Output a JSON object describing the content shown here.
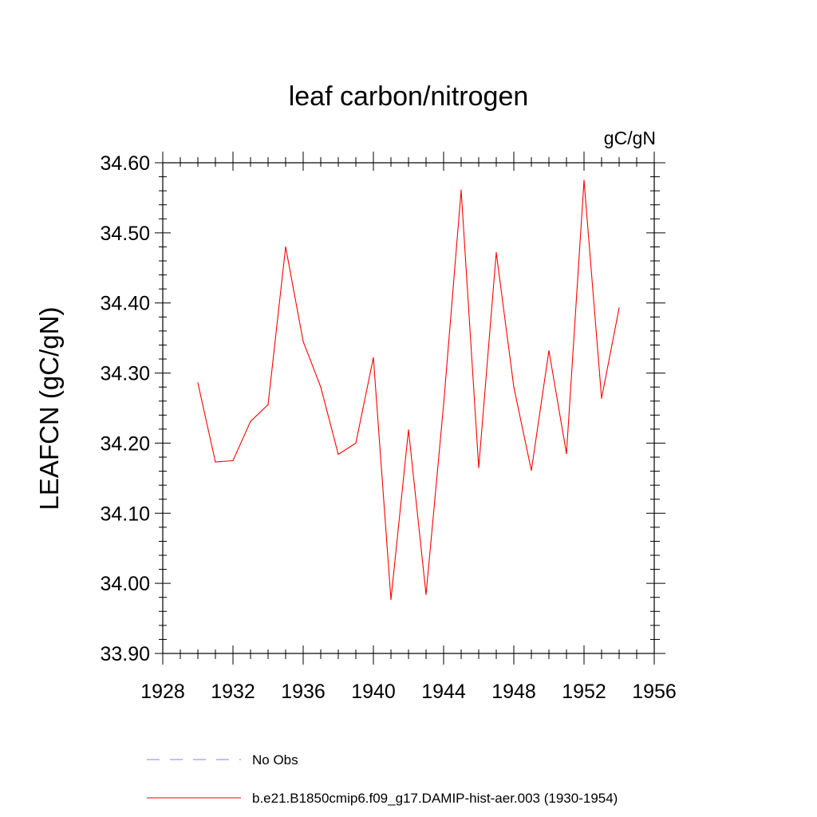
{
  "chart_data": {
    "type": "line",
    "title": "leaf carbon/nitrogen",
    "units": "gC/gN",
    "ylabel": "LEAFCN  (gC/gN)",
    "xlabel": "",
    "xlim": [
      1928,
      1956
    ],
    "ylim": [
      33.9,
      34.6
    ],
    "x_ticks": [
      1928,
      1932,
      1936,
      1940,
      1944,
      1948,
      1952,
      1956
    ],
    "x_tick_labels": [
      "1928",
      "1932",
      "1936",
      "1940",
      "1944",
      "1948",
      "1952",
      "1956"
    ],
    "y_ticks": [
      33.9,
      34.0,
      34.1,
      34.2,
      34.3,
      34.4,
      34.5,
      34.6
    ],
    "y_tick_labels": [
      "33.90",
      "34.00",
      "34.10",
      "34.20",
      "34.30",
      "34.40",
      "34.50",
      "34.60"
    ],
    "grid": false,
    "legend_position": "bottom",
    "series": [
      {
        "name": "b.e21.B1850cmip6.f09_g17.DAMIP-hist-aer.003 (1930-1954)",
        "color": "#ff0000",
        "style": "solid",
        "x": [
          1930,
          1931,
          1932,
          1933,
          1934,
          1935,
          1936,
          1937,
          1938,
          1939,
          1940,
          1941,
          1942,
          1943,
          1944,
          1945,
          1946,
          1947,
          1948,
          1949,
          1950,
          1951,
          1952,
          1953,
          1954
        ],
        "y": [
          34.286,
          34.173,
          34.175,
          34.231,
          34.255,
          34.48,
          34.345,
          34.28,
          34.184,
          34.2,
          34.322,
          33.977,
          34.219,
          33.984,
          34.255,
          34.561,
          34.165,
          34.472,
          34.28,
          34.161,
          34.332,
          34.185,
          34.575,
          34.264,
          34.393
        ]
      }
    ],
    "legend": [
      {
        "label": "No Obs",
        "color": "#8080ff",
        "style": "dashed"
      },
      {
        "label": "b.e21.B1850cmip6.f09_g17.DAMIP-hist-aer.003 (1930-1954)",
        "color": "#ff0000",
        "style": "solid"
      }
    ]
  }
}
